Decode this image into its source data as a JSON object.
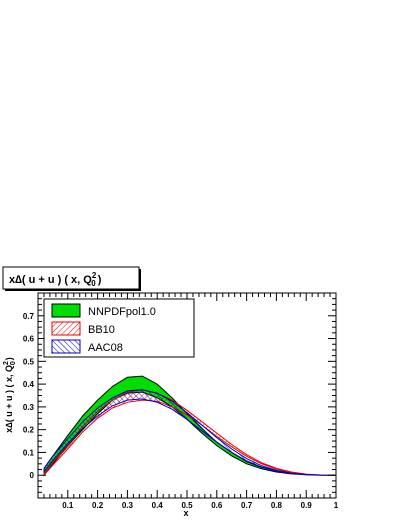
{
  "chart_data": {
    "type": "area",
    "title": "x∆( u + u ) ( x, Q",
    "title_sup": "2",
    "title_sub": "0",
    "title_tail": ")",
    "xlabel": "x",
    "ylabel": "x∆( u + u ) ( x, Q",
    "ylabel_sup": "2",
    "ylabel_sub": "0",
    "ylabel_tail": ")",
    "xlim": [
      0,
      1
    ],
    "ylim": [
      -0.1,
      0.8
    ],
    "x_ticks": [
      "0.1",
      "0.2",
      "0.3",
      "0.4",
      "0.5",
      "0.6",
      "0.7",
      "0.8",
      "0.9",
      "1"
    ],
    "y_ticks": [
      "0",
      "0.1",
      "0.2",
      "0.3",
      "0.4",
      "0.5",
      "0.6",
      "0.7"
    ],
    "grid": false,
    "legend_position": "top-left",
    "x": [
      0.02,
      0.05,
      0.1,
      0.15,
      0.2,
      0.25,
      0.3,
      0.35,
      0.4,
      0.45,
      0.5,
      0.55,
      0.6,
      0.65,
      0.7,
      0.75,
      0.8,
      0.85,
      0.9,
      0.95,
      1.0
    ],
    "series": [
      {
        "name": "NNPDFpol1.0",
        "color": "#00dd00",
        "edge": "#000000",
        "upper": [
          0.03,
          0.085,
          0.175,
          0.26,
          0.33,
          0.39,
          0.43,
          0.435,
          0.4,
          0.34,
          0.27,
          0.205,
          0.145,
          0.1,
          0.06,
          0.035,
          0.02,
          0.01,
          0.003,
          0.0005,
          0.0
        ],
        "lower": [
          0.0,
          0.05,
          0.13,
          0.2,
          0.27,
          0.33,
          0.36,
          0.365,
          0.34,
          0.3,
          0.245,
          0.185,
          0.13,
          0.085,
          0.05,
          0.028,
          0.014,
          0.006,
          0.002,
          0.0003,
          0.0
        ]
      },
      {
        "name": "BB10",
        "color": "#ee0000",
        "upper": [
          0.01,
          0.06,
          0.135,
          0.215,
          0.28,
          0.33,
          0.365,
          0.375,
          0.36,
          0.33,
          0.285,
          0.235,
          0.185,
          0.135,
          0.09,
          0.055,
          0.03,
          0.014,
          0.005,
          0.001,
          0.0
        ],
        "lower": [
          0.0,
          0.045,
          0.115,
          0.19,
          0.25,
          0.295,
          0.32,
          0.33,
          0.325,
          0.3,
          0.265,
          0.22,
          0.17,
          0.125,
          0.083,
          0.05,
          0.027,
          0.012,
          0.004,
          0.0008,
          0.0
        ]
      },
      {
        "name": "AAC08",
        "color": "#0000cc",
        "upper": [
          0.03,
          0.085,
          0.16,
          0.235,
          0.295,
          0.34,
          0.37,
          0.375,
          0.36,
          0.325,
          0.275,
          0.22,
          0.165,
          0.115,
          0.073,
          0.042,
          0.021,
          0.009,
          0.003,
          0.0006,
          0.0
        ],
        "lower": [
          0.015,
          0.065,
          0.14,
          0.205,
          0.26,
          0.305,
          0.33,
          0.335,
          0.32,
          0.29,
          0.245,
          0.195,
          0.145,
          0.1,
          0.063,
          0.036,
          0.018,
          0.008,
          0.0025,
          0.0005,
          0.0
        ]
      }
    ]
  }
}
